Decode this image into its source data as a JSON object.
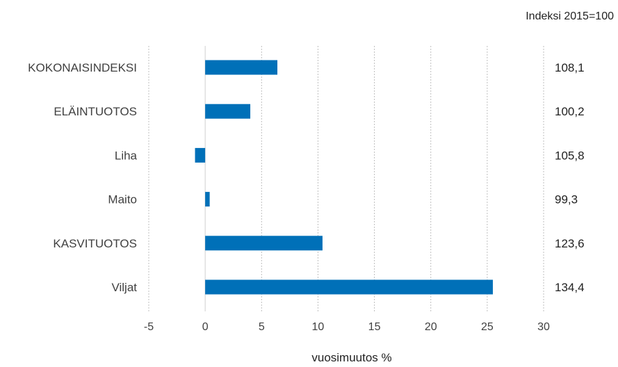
{
  "chart_data": {
    "type": "bar",
    "orientation": "horizontal",
    "categories": [
      "KOKONAISINDEKSI",
      "ELÄINTUOTOS",
      "Liha",
      "Maito",
      "KASVITUOTOS",
      "Viljat"
    ],
    "values": [
      6.4,
      4.0,
      -0.9,
      0.4,
      10.4,
      25.5
    ],
    "index_values": [
      "108,1",
      "100,2",
      "105,8",
      "99,3",
      "123,6",
      "134,4"
    ],
    "index_note": "Indeksi 2015=100",
    "xlabel": "vuosimuutos %",
    "xlim": [
      -5,
      30
    ],
    "xticks": [
      -5,
      0,
      5,
      10,
      15,
      20,
      25,
      30
    ],
    "grid": true,
    "bar_color": "#0070b8"
  }
}
